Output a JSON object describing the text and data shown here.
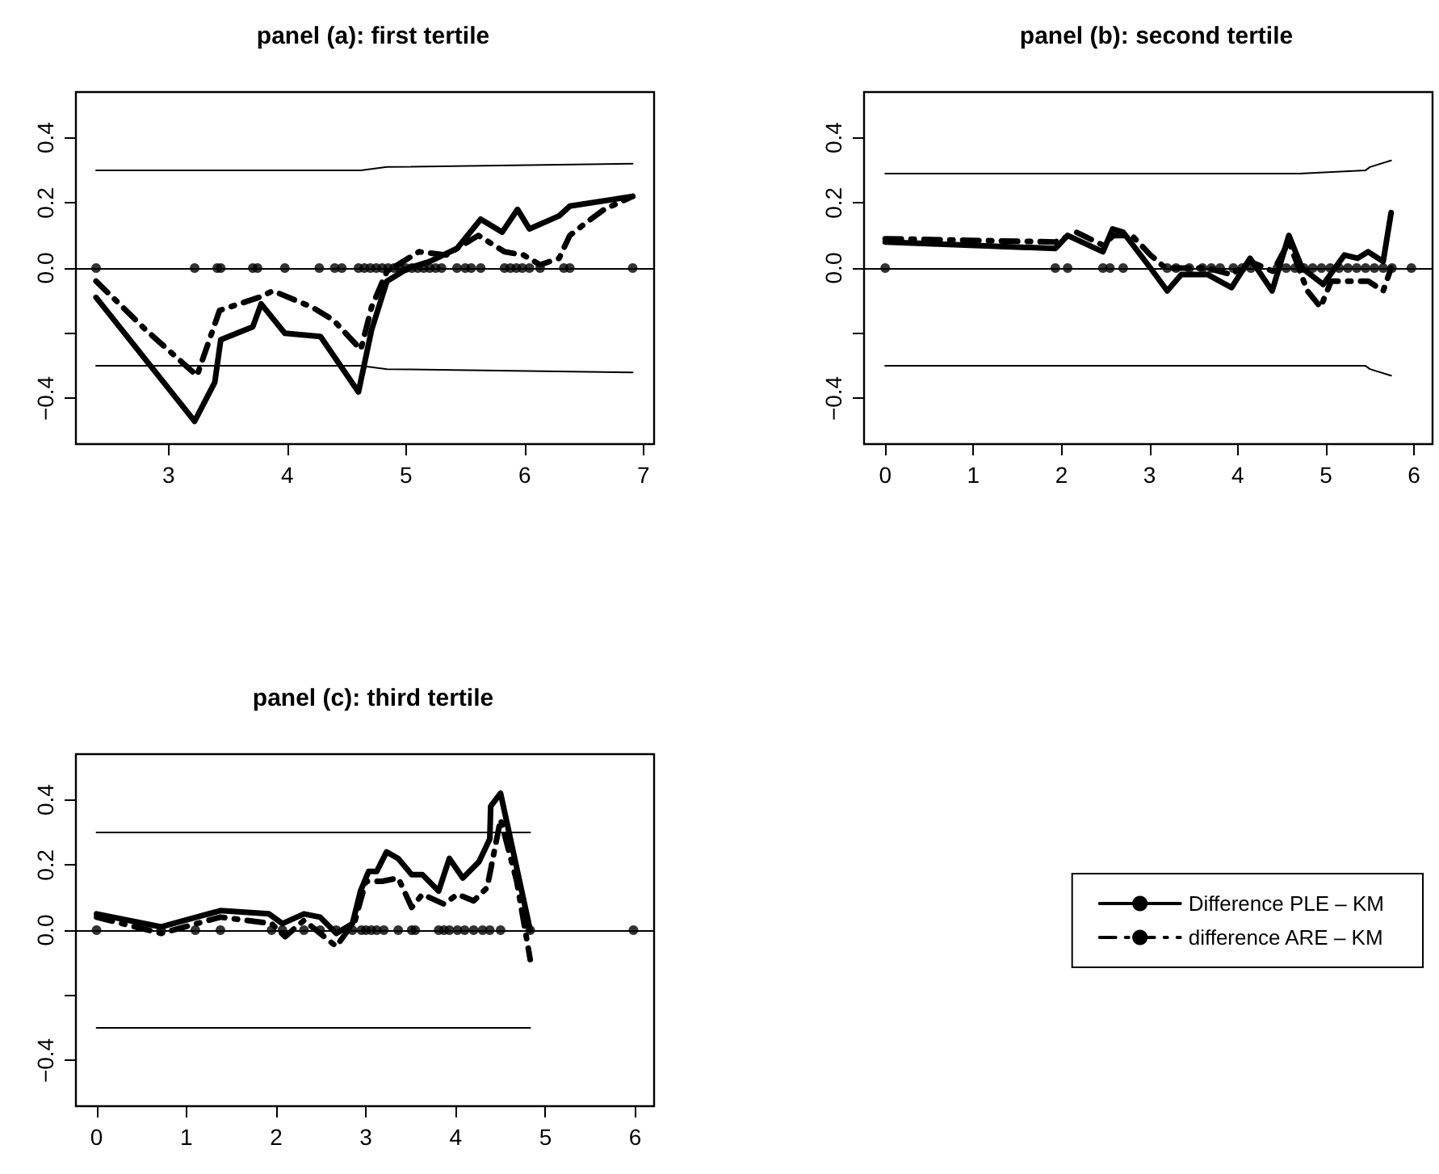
{
  "chart_data": [
    {
      "type": "line",
      "title": "panel (a): first tertile",
      "xlim": [
        2.22,
        7.09
      ],
      "xticks": [
        3,
        4,
        5,
        6,
        7
      ],
      "ylim": [
        -0.54,
        0.54
      ],
      "yticks": [
        {
          "value": -0.4,
          "label": "−0.4"
        },
        {
          "value": -0.2,
          "label": null
        },
        {
          "value": 0,
          "label": "0.0"
        },
        {
          "value": 0.2,
          "label": "0.2"
        },
        {
          "value": 0.4,
          "label": "0.4"
        }
      ],
      "grid": false,
      "legend": false,
      "marker": "none",
      "ref_lines": [
        {
          "axis": "y",
          "value": 0,
          "color": "#000000"
        }
      ],
      "series": [
        {
          "color": "#000000",
          "line_style": "solid",
          "x": [
            2.39,
            3.22,
            3.39,
            3.44,
            3.71,
            3.78,
            3.98,
            4.28,
            4.6,
            4.71,
            4.84,
            5.02,
            5.2,
            5.43,
            5.63,
            5.81,
            5.94,
            6.04,
            6.29,
            6.38,
            6.91
          ],
          "values": [
            -0.09,
            -0.47,
            -0.35,
            -0.22,
            -0.18,
            -0.11,
            -0.2,
            -0.21,
            -0.38,
            -0.19,
            -0.04,
            0.0,
            0.02,
            0.06,
            0.15,
            0.11,
            0.18,
            0.12,
            0.16,
            0.19,
            0.22
          ]
        },
        {
          "color": "#000000",
          "line_style": "dashed",
          "x": [
            2.39,
            2.53,
            2.81,
            3.24,
            3.43,
            3.76,
            3.88,
            4.21,
            4.39,
            4.62,
            4.71,
            4.84,
            5.11,
            5.34,
            5.61,
            5.83,
            5.99,
            6.13,
            6.29,
            6.38,
            6.52,
            6.67,
            6.91
          ],
          "values": [
            -0.04,
            -0.09,
            -0.19,
            -0.33,
            -0.13,
            -0.09,
            -0.07,
            -0.12,
            -0.16,
            -0.25,
            -0.12,
            -0.01,
            0.05,
            0.04,
            0.1,
            0.05,
            0.04,
            0.01,
            0.03,
            0.1,
            0.14,
            0.18,
            0.22
          ]
        },
        {
          "color": "#000000",
          "x": [
            2.39,
            4.62,
            4.84,
            6.91
          ],
          "values": [
            0.3,
            0.3,
            0.31,
            0.32
          ]
        },
        {
          "color": "#000000",
          "x": [
            2.39,
            4.62,
            4.84,
            6.91
          ],
          "values": [
            -0.3,
            -0.3,
            -0.31,
            -0.32
          ]
        },
        {
          "type": "scatter",
          "color": "#000000",
          "marker": "circle",
          "x": [
            2.39,
            3.22,
            3.41,
            3.44,
            3.71,
            3.75,
            3.98,
            4.27,
            4.4,
            4.46,
            4.6,
            4.65,
            4.7,
            4.75,
            4.8,
            4.85,
            4.9,
            4.95,
            5.0,
            5.05,
            5.1,
            5.15,
            5.2,
            5.25,
            5.3,
            5.43,
            5.5,
            5.55,
            5.63,
            5.83,
            5.88,
            5.93,
            5.98,
            6.04,
            6.13,
            6.33,
            6.38,
            6.91
          ],
          "values": [
            0,
            0,
            0,
            0,
            0,
            0,
            0,
            0,
            0,
            0,
            0,
            0,
            0,
            0,
            0,
            0,
            0,
            0,
            0,
            0,
            0,
            0,
            0,
            0,
            0,
            0,
            0,
            0,
            0,
            0,
            0,
            0,
            0,
            0,
            0,
            0,
            0,
            0
          ]
        }
      ]
    },
    {
      "type": "line",
      "title": "panel (b): second tertile",
      "xlim": [
        -0.24,
        6.21
      ],
      "xticks": [
        0,
        1,
        2,
        3,
        4,
        5,
        6
      ],
      "ylim": [
        -0.54,
        0.54
      ],
      "yticks": [
        {
          "value": -0.4,
          "label": "−0.4"
        },
        {
          "value": -0.2,
          "label": null
        },
        {
          "value": 0,
          "label": "0.0"
        },
        {
          "value": 0.2,
          "label": "0.2"
        },
        {
          "value": 0.4,
          "label": "0.4"
        }
      ],
      "grid": false,
      "legend": false,
      "marker": "none",
      "ref_lines": [
        {
          "axis": "y",
          "value": 0,
          "color": "#000000"
        }
      ],
      "series": [
        {
          "color": "#000000",
          "line_style": "solid",
          "x": [
            0,
            1.93,
            2.07,
            2.47,
            2.58,
            2.7,
            3.01,
            3.2,
            3.36,
            3.66,
            3.93,
            4.14,
            4.39,
            4.58,
            4.73,
            4.97,
            5.21,
            5.36,
            5.48,
            5.65,
            5.74
          ],
          "values": [
            0.08,
            0.06,
            0.1,
            0.05,
            0.12,
            0.11,
            0.0,
            -0.07,
            -0.02,
            -0.02,
            -0.06,
            0.03,
            -0.07,
            0.1,
            0.0,
            -0.05,
            0.04,
            0.03,
            0.05,
            0.02,
            0.17
          ]
        },
        {
          "color": "#000000",
          "line_style": "dashed",
          "x": [
            0,
            1.93,
            2.17,
            2.47,
            2.59,
            2.8,
            3.01,
            3.18,
            3.66,
            3.93,
            4.14,
            4.4,
            4.58,
            4.79,
            4.94,
            5.06,
            5.21,
            5.48,
            5.65,
            5.74
          ],
          "values": [
            0.09,
            0.08,
            0.11,
            0.07,
            0.1,
            0.1,
            0.04,
            0.0,
            0.0,
            -0.02,
            0.02,
            -0.01,
            0.08,
            -0.07,
            -0.12,
            -0.04,
            -0.04,
            -0.04,
            -0.07,
            0.0
          ]
        },
        {
          "color": "#000000",
          "x": [
            0,
            4.7,
            5.45,
            5.5,
            5.74
          ],
          "values": [
            0.29,
            0.29,
            0.3,
            0.31,
            0.33
          ]
        },
        {
          "color": "#000000",
          "x": [
            0,
            4.7,
            5.45,
            5.5,
            5.74
          ],
          "values": [
            -0.3,
            -0.3,
            -0.3,
            -0.31,
            -0.33
          ]
        },
        {
          "type": "scatter",
          "color": "#000000",
          "marker": "circle",
          "x": [
            0,
            1.93,
            2.07,
            2.47,
            2.55,
            2.7,
            3.2,
            3.3,
            3.45,
            3.6,
            3.7,
            3.8,
            3.95,
            4.05,
            4.15,
            4.45,
            4.55,
            4.65,
            4.75,
            4.85,
            4.95,
            5.05,
            5.15,
            5.25,
            5.35,
            5.45,
            5.55,
            5.65,
            5.75,
            5.97
          ],
          "values": [
            0,
            0,
            0,
            0,
            0,
            0,
            0,
            0,
            0,
            0,
            0,
            0,
            0,
            0,
            0,
            0,
            0,
            0,
            0,
            0,
            0,
            0,
            0,
            0,
            0,
            0,
            0,
            0,
            0,
            0
          ]
        }
      ]
    },
    {
      "type": "line",
      "title": "panel (c): third tertile",
      "xlim": [
        -0.23,
        6.21
      ],
      "xticks": [
        0,
        1,
        2,
        3,
        4,
        5,
        6
      ],
      "ylim": [
        -0.54,
        0.54
      ],
      "yticks": [
        {
          "value": -0.4,
          "label": "−0.4"
        },
        {
          "value": -0.2,
          "label": null
        },
        {
          "value": 0,
          "label": "0.0"
        },
        {
          "value": 0.2,
          "label": "0.2"
        },
        {
          "value": 0.4,
          "label": "0.4"
        }
      ],
      "grid": false,
      "legend": "right",
      "marker": "none",
      "ref_lines": [
        {
          "axis": "y",
          "value": 0,
          "color": "#000000"
        }
      ],
      "series": [
        {
          "name": "Difference PLE – KM",
          "color": "#000000",
          "line_style": "solid",
          "x": [
            0,
            0.72,
            1.38,
            1.92,
            2.07,
            2.31,
            2.49,
            2.67,
            2.85,
            2.94,
            3.03,
            3.12,
            3.23,
            3.36,
            3.51,
            3.63,
            3.81,
            3.93,
            4.08,
            4.26,
            4.38,
            4.39,
            4.5,
            4.83
          ],
          "values": [
            0.05,
            0.01,
            0.06,
            0.05,
            0.02,
            0.05,
            0.04,
            -0.01,
            0.02,
            0.12,
            0.18,
            0.18,
            0.24,
            0.22,
            0.17,
            0.17,
            0.12,
            0.22,
            0.16,
            0.21,
            0.28,
            0.38,
            0.42,
            0.0
          ]
        },
        {
          "name": "difference ARE – KM",
          "color": "#000000",
          "line_style": "dashed",
          "x": [
            0,
            0.72,
            1.38,
            1.95,
            2.1,
            2.31,
            2.67,
            2.88,
            3.0,
            3.18,
            3.36,
            3.51,
            3.63,
            3.87,
            4.02,
            4.2,
            4.35,
            4.5,
            4.68,
            4.83
          ],
          "values": [
            0.04,
            -0.01,
            0.04,
            0.02,
            -0.02,
            0.03,
            -0.05,
            0.03,
            0.15,
            0.15,
            0.16,
            0.07,
            0.11,
            0.08,
            0.11,
            0.09,
            0.13,
            0.34,
            0.15,
            -0.09
          ]
        },
        {
          "color": "#000000",
          "x": [
            0,
            4.83
          ],
          "values": [
            0.3,
            0.3
          ]
        },
        {
          "color": "#000000",
          "x": [
            0,
            4.83
          ],
          "values": [
            -0.3,
            -0.3
          ]
        },
        {
          "type": "scatter",
          "color": "#000000",
          "marker": "circle",
          "x": [
            0,
            0.72,
            1.1,
            1.38,
            1.95,
            2.07,
            2.31,
            2.49,
            2.67,
            2.85,
            2.95,
            3.0,
            3.06,
            3.12,
            3.2,
            3.36,
            3.51,
            3.55,
            3.81,
            3.87,
            3.93,
            4.02,
            4.1,
            4.2,
            4.3,
            4.38,
            4.5,
            4.83,
            5.98
          ],
          "values": [
            0,
            0,
            0,
            0,
            0,
            0,
            0,
            0,
            0,
            0,
            0,
            0,
            0,
            0,
            0,
            0,
            0,
            0,
            0,
            0,
            0,
            0,
            0,
            0,
            0,
            0,
            0,
            0,
            0
          ]
        }
      ]
    }
  ]
}
